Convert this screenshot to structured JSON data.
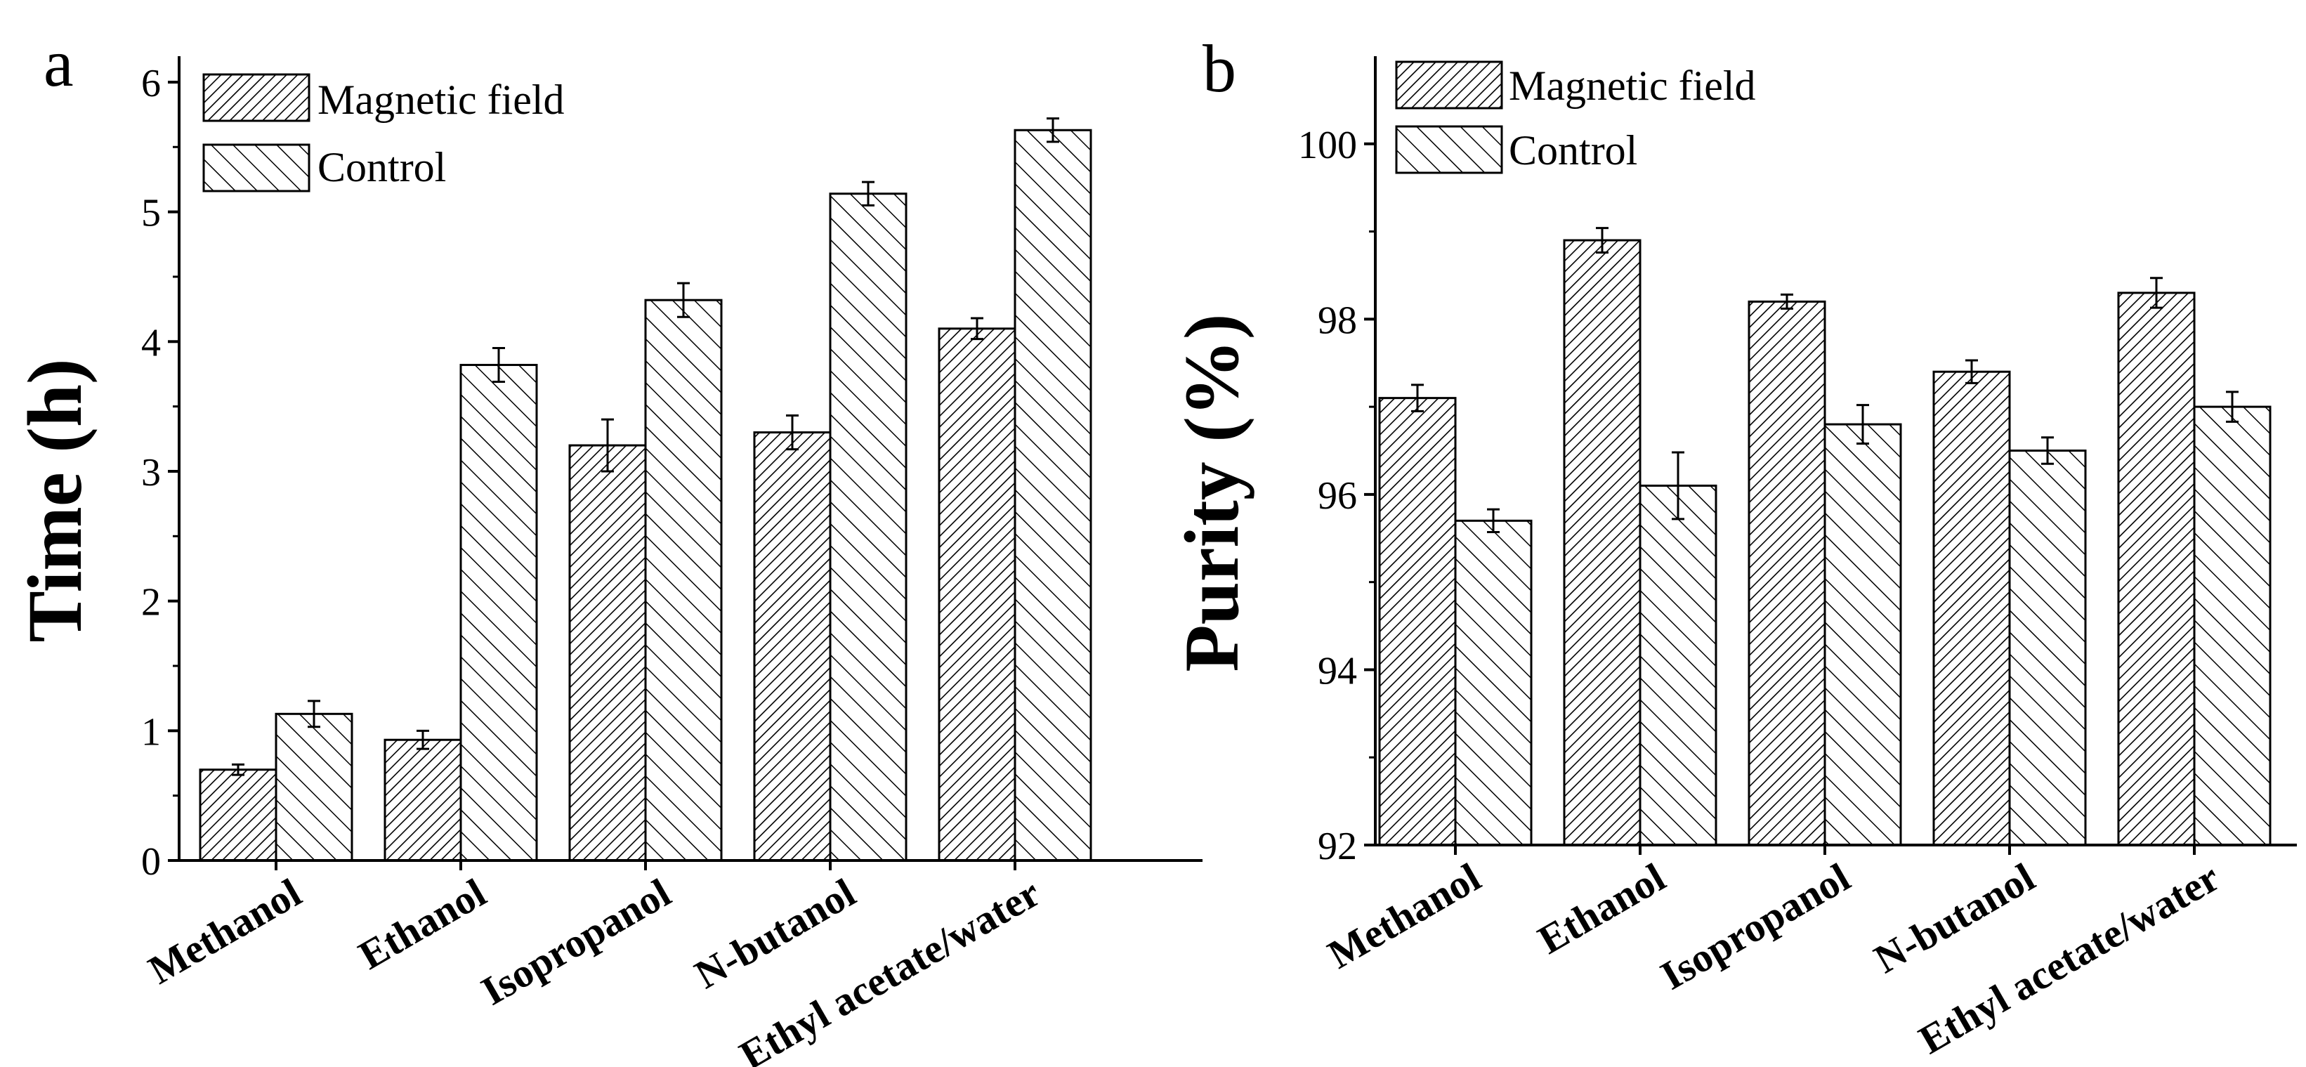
{
  "figure": {
    "panels": [
      "a",
      "b"
    ]
  },
  "chart_data": [
    {
      "type": "bar",
      "panel": "a",
      "categories": [
        "Methanol",
        "Ethanol",
        "Isopropanol",
        "N-butanol",
        "Ethyl acetate/water"
      ],
      "series": [
        {
          "name": "Magnetic field",
          "values": [
            0.7,
            0.93,
            3.2,
            3.3,
            4.1
          ],
          "errors": [
            0.04,
            0.07,
            0.2,
            0.13,
            0.08
          ],
          "pattern": "dense-hatch"
        },
        {
          "name": "Control",
          "values": [
            1.13,
            3.82,
            4.32,
            5.14,
            5.63
          ],
          "errors": [
            0.1,
            0.13,
            0.13,
            0.09,
            0.09
          ],
          "pattern": "backslash-hatch"
        }
      ],
      "xlabel": "",
      "ylabel": "Time (h)",
      "ylim": [
        0,
        6.2
      ],
      "yticks": [
        "0",
        "1",
        "2",
        "3",
        "4",
        "5",
        "6"
      ],
      "grid": false,
      "legend": "top-left"
    },
    {
      "type": "bar",
      "panel": "b",
      "categories": [
        "Methanol",
        "Ethanol",
        "Isopropanol",
        "N-butanol",
        "Ethyl acetate/water"
      ],
      "series": [
        {
          "name": "Magnetic field",
          "values": [
            97.1,
            98.9,
            98.2,
            97.4,
            98.3
          ],
          "errors": [
            0.15,
            0.14,
            0.08,
            0.13,
            0.17
          ],
          "pattern": "dense-hatch"
        },
        {
          "name": "Control",
          "values": [
            95.7,
            96.1,
            96.8,
            96.5,
            97.0
          ],
          "errors": [
            0.13,
            0.38,
            0.22,
            0.15,
            0.17
          ],
          "pattern": "backslash-hatch"
        }
      ],
      "xlabel": "",
      "ylabel": "Purity (%)",
      "ylim": [
        92,
        101
      ],
      "yticks": [
        "92",
        "94",
        "96",
        "98",
        "100"
      ],
      "grid": false,
      "legend": "top-left"
    }
  ]
}
